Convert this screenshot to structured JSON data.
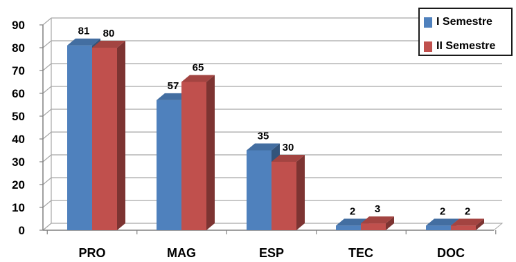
{
  "chart_data": {
    "type": "bar",
    "title": "",
    "xlabel": "",
    "ylabel": "",
    "categories": [
      "PRO",
      "MAG",
      "ESP",
      "TEC",
      "DOC"
    ],
    "series": [
      {
        "name": "I Semestre",
        "values": [
          81,
          57,
          35,
          2,
          2
        ],
        "color": "#4f81bd"
      },
      {
        "name": "II Semestre",
        "values": [
          80,
          65,
          30,
          3,
          2
        ],
        "color": "#c0504d"
      }
    ],
    "ylim": [
      0,
      90
    ],
    "yticks": [
      0,
      10,
      20,
      30,
      40,
      50,
      60,
      70,
      80,
      90
    ],
    "grid": true,
    "legend_position": "top-right",
    "style": "3d-clustered-column"
  }
}
